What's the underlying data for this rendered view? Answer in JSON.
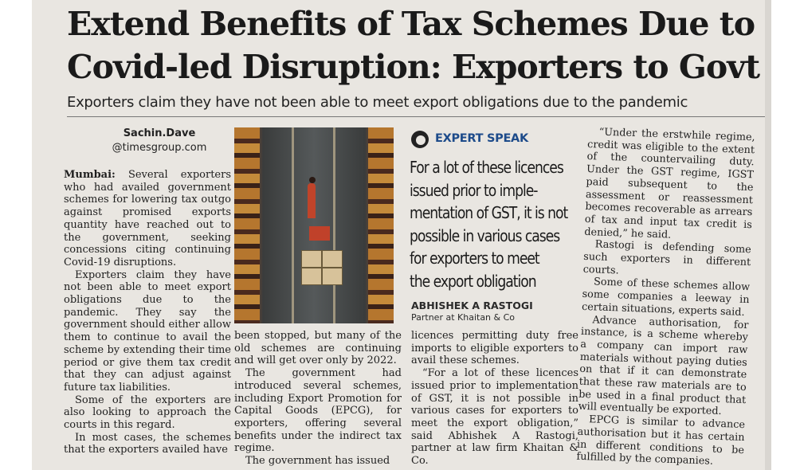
{
  "article": {
    "headline_line1": "Extend Benefits of Tax Schemes Due to",
    "headline_line2": "Covid-led Disruption: Exporters to Govt",
    "subheadline": "Exporters claim they have not been able to meet export obligations due to the pandemic",
    "byline_name": "Sachin.Dave",
    "byline_handle": "@timesgroup.com",
    "col1": {
      "dateline": "Mumbai:",
      "p1": " Several exporters who had availed government schemes for lowering tax outgo against promised exports quantity have reached out to the government, seeking concessions citing continuing Covid-19 disruptions.",
      "p2": "Exporters claim they have not been able to meet export obligations due to the pandemic. They say the government should either allow them to continue to avail the scheme by extending their time period or give them tax credit that they can adjust against future tax liabilities.",
      "p3": "Some of the exporters are also looking to approach the courts in this regard.",
      "p4": "In most cases, the schemes that the exporters availed have"
    },
    "col2": {
      "p1": "been stopped, but many of the old schemes are continuing and will get over only by 2022.",
      "p2": "The government had introduced several schemes, including Export Promotion for Capital Goods (EPCG), for exporters, offering several benefits under the indirect tax regime.",
      "p3": "The government has issued"
    },
    "col3": {
      "p1": "licences permitting duty free imports to eligible exporters to avail these schemes.",
      "p2": "“For a lot of these licences issued prior to implementation of GST, it is not possible in various cases for exporters to meet the export obligation,” said Abhishek A Rastogi, partner at law firm Khaitan & Co."
    },
    "col4": {
      "p1": "“Under the erstwhile regime, credit was eligible to the extent of the countervailing duty. Under the GST regime, IGST paid subsequent to the assessment or reassessment becomes recoverable as arrears of tax and input tax credit is denied,” he said.",
      "p2": "Rastogi is defending some such exporters in different courts.",
      "p3": "Some of these schemes allow some companies a leeway in certain situations, experts said.",
      "p4": "Advance authorisation, for instance, is a scheme whereby a company can import raw materials without paying duties on that if it can demonstrate that these raw materials are to be used in a final product that will eventually be exported.",
      "p5": "EPCG is similar to advance authorisation but it has certain in different conditions to be fulfilled by the companies."
    }
  },
  "expert_speak": {
    "label": "EXPERT SPEAK",
    "quote_lines": [
      "For a lot of these licences",
      "issued prior to imple-",
      "mentation of GST, it is not",
      "possible in various cases",
      "for exporters to meet",
      "the export obligation"
    ],
    "name": "ABHISHEK A RASTOGI",
    "role": "Partner at Khaitan & Co"
  },
  "photo": {
    "icon": "warehouse-photo"
  },
  "colors": {
    "paper": "#e9e6e1",
    "expert_label": "#1d4b8a",
    "text": "#1e1e1e"
  }
}
